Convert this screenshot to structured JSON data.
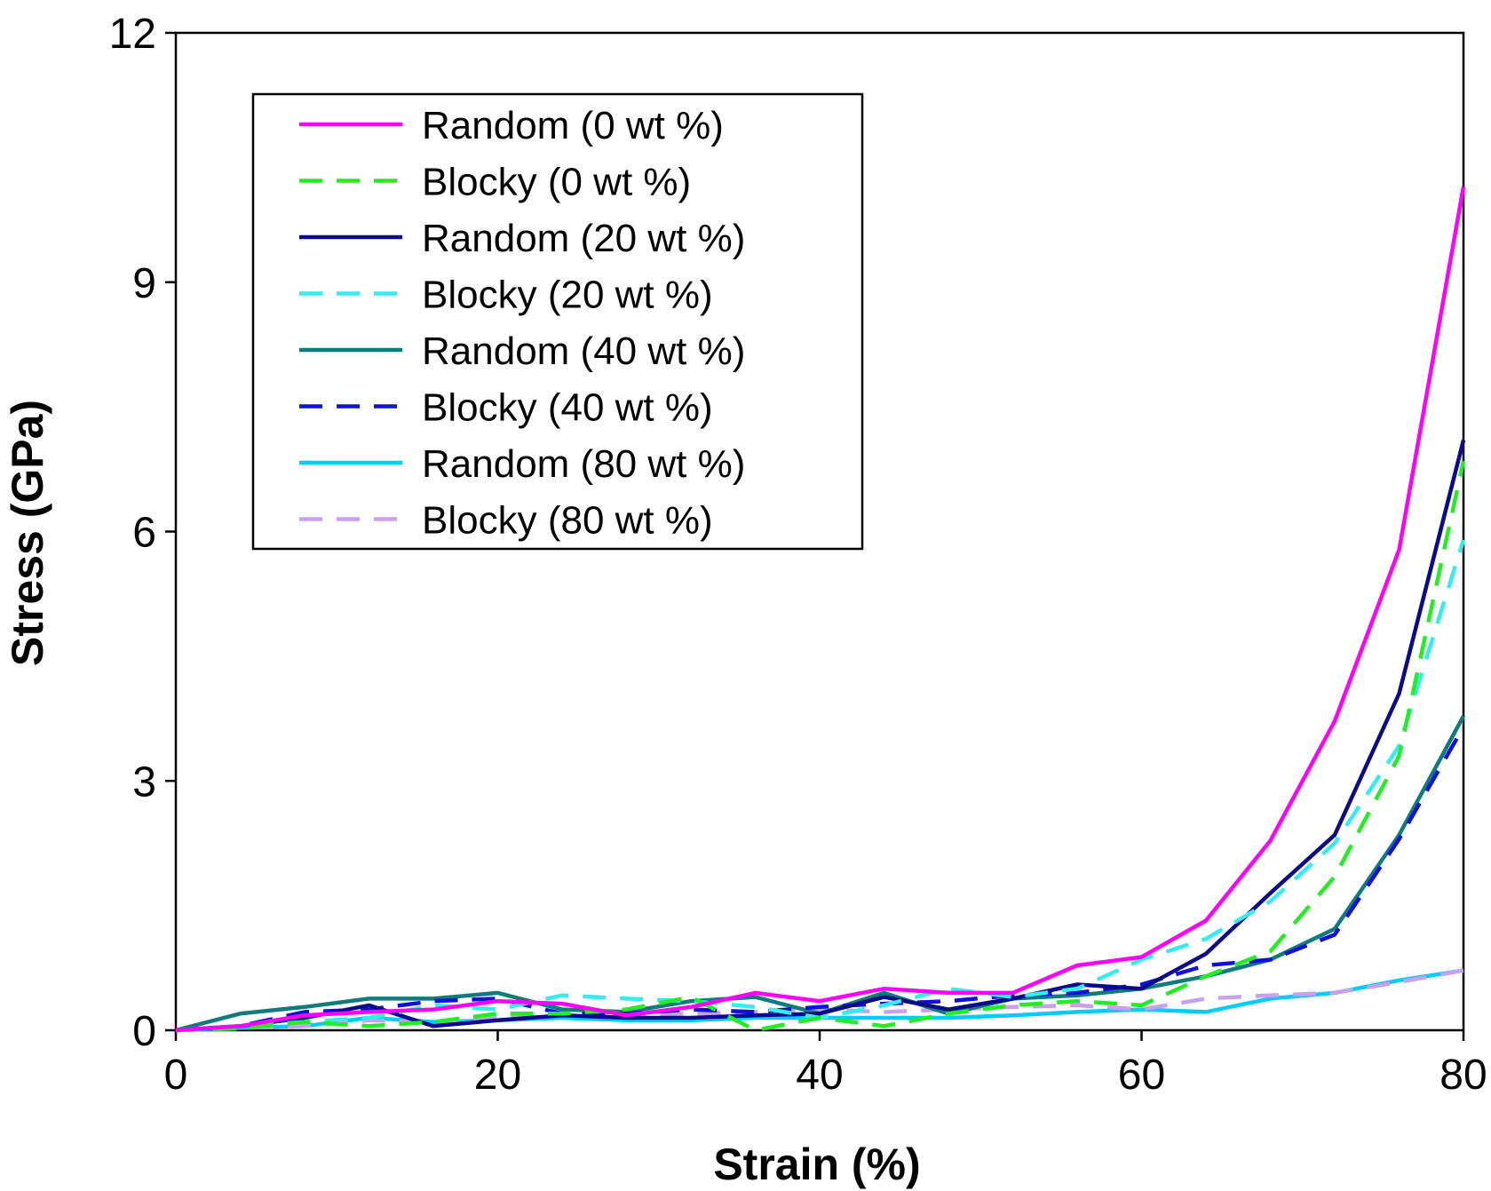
{
  "chart_data": {
    "type": "line",
    "title": "",
    "xlabel": "Strain (%)",
    "ylabel": "Stress (GPa)",
    "xlim": [
      0,
      80
    ],
    "ylim": [
      0,
      12
    ],
    "xticks": [
      0,
      20,
      40,
      60,
      80
    ],
    "yticks": [
      0,
      3,
      6,
      9,
      12
    ],
    "grid": false,
    "legend_position": "top-left",
    "x": [
      0,
      4,
      8,
      12,
      16,
      20,
      24,
      28,
      32,
      36,
      40,
      44,
      48,
      52,
      56,
      60,
      64,
      68,
      72,
      76,
      80
    ],
    "series": [
      {
        "name": "Random (0 wt %)",
        "color": "#ff00ff",
        "dash": false,
        "values": [
          0,
          0.05,
          0.18,
          0.22,
          0.25,
          0.35,
          0.32,
          0.18,
          0.28,
          0.45,
          0.35,
          0.5,
          0.45,
          0.45,
          0.78,
          0.88,
          1.32,
          2.28,
          3.72,
          5.78,
          10.15
        ]
      },
      {
        "name": "Blocky (0 wt %)",
        "color": "#22ee22",
        "dash": true,
        "values": [
          0,
          0.02,
          0.1,
          0.05,
          0.1,
          0.2,
          0.2,
          0.25,
          0.4,
          0.0,
          0.15,
          0.05,
          0.2,
          0.3,
          0.35,
          0.3,
          0.65,
          0.95,
          1.85,
          3.3,
          6.85
        ]
      },
      {
        "name": "Random (20 wt %)",
        "color": "#0a0a8a",
        "dash": false,
        "values": [
          0,
          0.05,
          0.15,
          0.3,
          0.05,
          0.12,
          0.18,
          0.15,
          0.15,
          0.18,
          0.2,
          0.4,
          0.25,
          0.38,
          0.55,
          0.5,
          0.92,
          1.65,
          2.35,
          4.05,
          7.1
        ]
      },
      {
        "name": "Blocky (20 wt %)",
        "color": "#33eeee",
        "dash": true,
        "values": [
          0,
          0.05,
          0.1,
          0.15,
          0.3,
          0.25,
          0.42,
          0.38,
          0.35,
          0.28,
          0.15,
          0.3,
          0.5,
          0.4,
          0.5,
          0.85,
          1.1,
          1.55,
          2.25,
          3.42,
          5.9
        ]
      },
      {
        "name": "Random (40 wt %)",
        "color": "#0f7b7b",
        "dash": false,
        "values": [
          0,
          0.2,
          0.28,
          0.38,
          0.38,
          0.45,
          0.25,
          0.22,
          0.35,
          0.4,
          0.2,
          0.45,
          0.2,
          0.38,
          0.42,
          0.5,
          0.65,
          0.85,
          1.22,
          2.35,
          3.78
        ]
      },
      {
        "name": "Blocky (40 wt %)",
        "color": "#1010dd",
        "dash": true,
        "values": [
          0,
          0.05,
          0.22,
          0.25,
          0.35,
          0.38,
          0.2,
          0.2,
          0.25,
          0.22,
          0.28,
          0.32,
          0.35,
          0.42,
          0.45,
          0.55,
          0.78,
          0.85,
          1.15,
          2.3,
          3.65
        ]
      },
      {
        "name": "Random (80 wt %)",
        "color": "#00ccff",
        "dash": false,
        "values": [
          0,
          0.03,
          0.05,
          0.15,
          0.1,
          0.12,
          0.15,
          0.12,
          0.12,
          0.15,
          0.15,
          0.15,
          0.15,
          0.18,
          0.22,
          0.25,
          0.22,
          0.38,
          0.45,
          0.6,
          0.72
        ]
      },
      {
        "name": "Blocky (80 wt %)",
        "color": "#c8a0ee",
        "dash": true,
        "values": [
          0,
          0.03,
          0.05,
          0.12,
          0.1,
          0.15,
          0.18,
          0.18,
          0.2,
          0.22,
          0.25,
          0.22,
          0.25,
          0.28,
          0.3,
          0.25,
          0.38,
          0.42,
          0.45,
          0.58,
          0.72
        ]
      }
    ]
  }
}
